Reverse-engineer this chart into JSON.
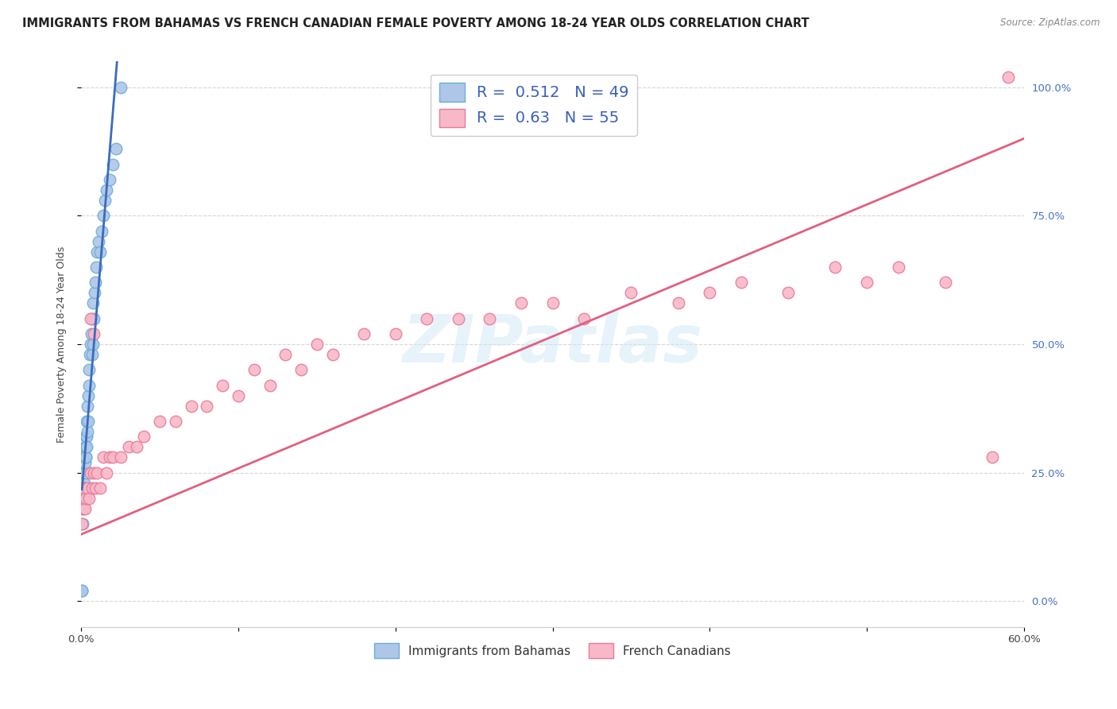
{
  "title": "IMMIGRANTS FROM BAHAMAS VS FRENCH CANADIAN FEMALE POVERTY AMONG 18-24 YEAR OLDS CORRELATION CHART",
  "source": "Source: ZipAtlas.com",
  "ylabel": "Female Poverty Among 18-24 Year Olds",
  "xmin": 0.0,
  "xmax": 0.6,
  "ymin": 0.0,
  "ymax": 1.05,
  "y_tick_positions": [
    0.0,
    0.25,
    0.5,
    0.75,
    1.0
  ],
  "y_tick_labels": [
    "0.0%",
    "25.0%",
    "50.0%",
    "75.0%",
    "100.0%"
  ],
  "bahamas_color": "#aec6e8",
  "bahamas_edge_color": "#6baed6",
  "french_color": "#f9b8c8",
  "french_edge_color": "#e87a99",
  "bahamas_R": 0.512,
  "bahamas_N": 49,
  "french_R": 0.63,
  "french_N": 55,
  "bahamas_line_color": "#3a6bbf",
  "french_line_color": "#e06080",
  "watermark_color": "#d0e8f8",
  "legend_label_blue": "Immigrants from Bahamas",
  "legend_label_pink": "French Canadians",
  "bahamas_x": [
    0.0005,
    0.0005,
    0.0008,
    0.001,
    0.001,
    0.0012,
    0.0015,
    0.0015,
    0.0018,
    0.002,
    0.002,
    0.0022,
    0.0025,
    0.0025,
    0.0028,
    0.0028,
    0.003,
    0.003,
    0.0032,
    0.0035,
    0.0035,
    0.0038,
    0.004,
    0.0042,
    0.0045,
    0.0048,
    0.005,
    0.0055,
    0.006,
    0.0065,
    0.0068,
    0.007,
    0.0072,
    0.0075,
    0.008,
    0.0085,
    0.009,
    0.0095,
    0.01,
    0.011,
    0.012,
    0.013,
    0.014,
    0.015,
    0.016,
    0.018,
    0.02,
    0.022,
    0.025
  ],
  "bahamas_y": [
    0.02,
    0.02,
    0.15,
    0.18,
    0.2,
    0.22,
    0.2,
    0.25,
    0.23,
    0.22,
    0.28,
    0.25,
    0.27,
    0.3,
    0.28,
    0.32,
    0.28,
    0.3,
    0.32,
    0.3,
    0.35,
    0.33,
    0.38,
    0.35,
    0.4,
    0.42,
    0.45,
    0.48,
    0.5,
    0.52,
    0.55,
    0.48,
    0.58,
    0.5,
    0.55,
    0.6,
    0.62,
    0.65,
    0.68,
    0.7,
    0.68,
    0.72,
    0.75,
    0.78,
    0.8,
    0.82,
    0.85,
    0.88,
    1.0
  ],
  "french_x": [
    0.0005,
    0.001,
    0.0015,
    0.002,
    0.0025,
    0.003,
    0.004,
    0.005,
    0.006,
    0.007,
    0.008,
    0.009,
    0.01,
    0.012,
    0.014,
    0.016,
    0.018,
    0.02,
    0.025,
    0.03,
    0.035,
    0.04,
    0.05,
    0.06,
    0.07,
    0.08,
    0.09,
    0.1,
    0.11,
    0.12,
    0.13,
    0.14,
    0.15,
    0.16,
    0.18,
    0.2,
    0.22,
    0.24,
    0.26,
    0.28,
    0.3,
    0.32,
    0.35,
    0.38,
    0.4,
    0.42,
    0.45,
    0.48,
    0.5,
    0.52,
    0.55,
    0.58,
    0.006,
    0.008,
    0.59
  ],
  "french_y": [
    0.15,
    0.18,
    0.2,
    0.22,
    0.18,
    0.2,
    0.22,
    0.2,
    0.25,
    0.22,
    0.25,
    0.22,
    0.25,
    0.22,
    0.28,
    0.25,
    0.28,
    0.28,
    0.28,
    0.3,
    0.3,
    0.32,
    0.35,
    0.35,
    0.38,
    0.38,
    0.42,
    0.4,
    0.45,
    0.42,
    0.48,
    0.45,
    0.5,
    0.48,
    0.52,
    0.52,
    0.55,
    0.55,
    0.55,
    0.58,
    0.58,
    0.55,
    0.6,
    0.58,
    0.6,
    0.62,
    0.6,
    0.65,
    0.62,
    0.65,
    0.62,
    0.28,
    0.55,
    0.52,
    1.02
  ],
  "title_fontsize": 10.5,
  "axis_fontsize": 9,
  "tick_fontsize": 9.5
}
